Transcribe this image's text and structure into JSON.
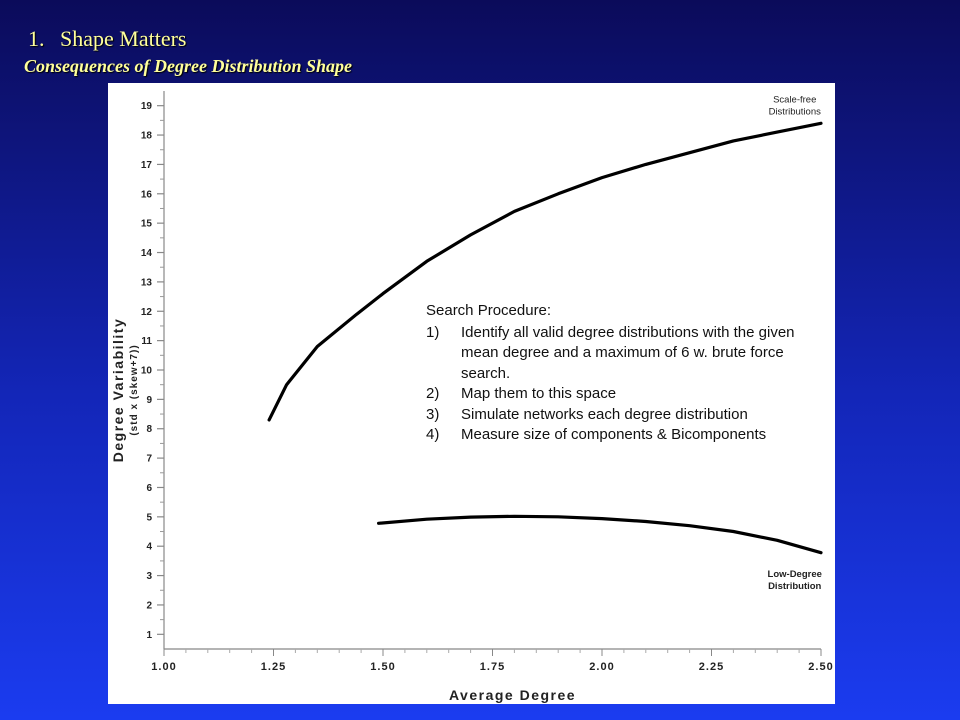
{
  "slide": {
    "title_number": "1.",
    "title": "Shape Matters",
    "subtitle": "Consequences of Degree Distribution Shape"
  },
  "callout": {
    "heading": "Search Procedure:",
    "steps": [
      {
        "n": "1)",
        "text": "Identify all valid degree distributions with the given mean degree and a maximum of 6 w. brute force search."
      },
      {
        "n": "2)",
        "text": "Map them to this space"
      },
      {
        "n": "3)",
        "text": "Simulate networks each degree distribution"
      },
      {
        "n": "4)",
        "text": "Measure size of components & Bicomponents"
      }
    ]
  },
  "chart_data": {
    "type": "line",
    "xlabel": "Average Degree",
    "ylabel": "Degree Variability",
    "ylabel_sub": "(std x (skew+7))",
    "xlim": [
      1.0,
      2.5
    ],
    "ylim": [
      0.5,
      19.5
    ],
    "x_ticks": [
      "1.00",
      "1.25",
      "1.50",
      "1.75",
      "2.00",
      "2.25",
      "2.50"
    ],
    "x_tick_values": [
      1.0,
      1.25,
      1.5,
      1.75,
      2.0,
      2.25,
      2.5
    ],
    "y_ticks": [
      "1",
      "2",
      "3",
      "4",
      "5",
      "6",
      "7",
      "8",
      "9",
      "10",
      "11",
      "12",
      "13",
      "14",
      "15",
      "16",
      "17",
      "18",
      "19"
    ],
    "y_tick_values": [
      1,
      2,
      3,
      4,
      5,
      6,
      7,
      8,
      9,
      10,
      11,
      12,
      13,
      14,
      15,
      16,
      17,
      18,
      19
    ],
    "grid": false,
    "line_color": "#000000",
    "series": [
      {
        "name": "Scale-free Distributions",
        "label_lines": [
          "Scale-free",
          "Distributions"
        ],
        "x": [
          1.24,
          1.28,
          1.35,
          1.44,
          1.5,
          1.6,
          1.7,
          1.8,
          1.9,
          2.0,
          2.1,
          2.2,
          2.3,
          2.4,
          2.5
        ],
        "y": [
          8.3,
          9.5,
          10.8,
          11.9,
          12.6,
          13.7,
          14.6,
          15.4,
          16.0,
          16.55,
          17.0,
          17.4,
          17.8,
          18.1,
          18.4
        ]
      },
      {
        "name": "Low-Degree Distribution",
        "label_lines": [
          "Low-Degree",
          "Distribution"
        ],
        "x": [
          1.49,
          1.6,
          1.7,
          1.8,
          1.9,
          2.0,
          2.1,
          2.2,
          2.3,
          2.4,
          2.5
        ],
        "y": [
          4.78,
          4.92,
          4.99,
          5.02,
          5.0,
          4.94,
          4.84,
          4.7,
          4.5,
          4.2,
          3.78
        ]
      }
    ]
  }
}
